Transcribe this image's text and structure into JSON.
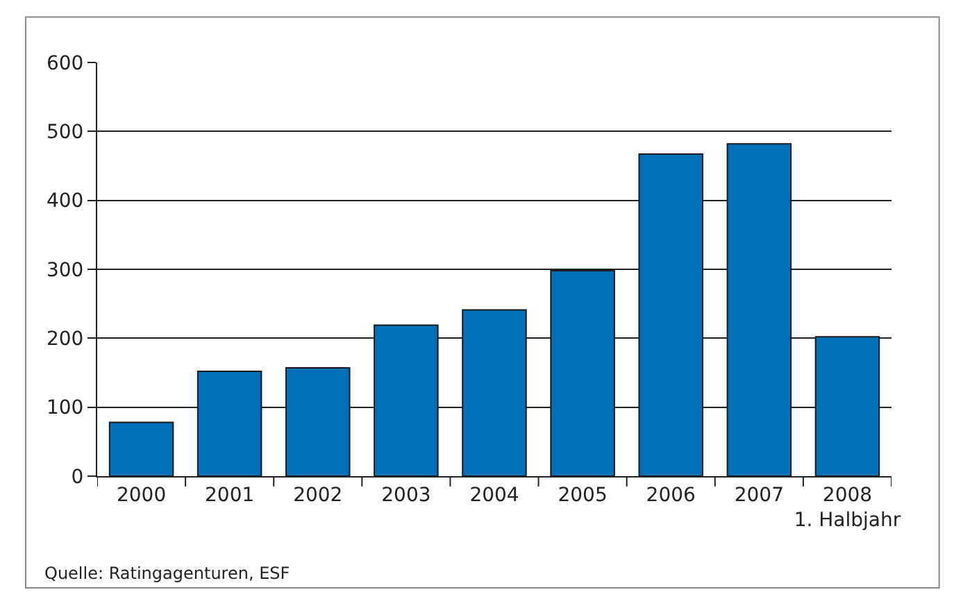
{
  "chart_data": {
    "type": "bar",
    "categories": [
      "2000",
      "2001",
      "2002",
      "2003",
      "2004",
      "2005",
      "2006",
      "2007",
      "2008\n1. Halbjahr"
    ],
    "values": [
      78,
      152,
      157,
      219,
      241,
      298,
      467,
      482,
      202
    ],
    "color": "#0070b8",
    "ylim": [
      0,
      600
    ],
    "yticks": [
      0,
      100,
      200,
      300,
      400,
      500,
      600
    ],
    "grid": "y",
    "annotations": [
      "Quelle: Ratingagenturen, ESF"
    ]
  }
}
